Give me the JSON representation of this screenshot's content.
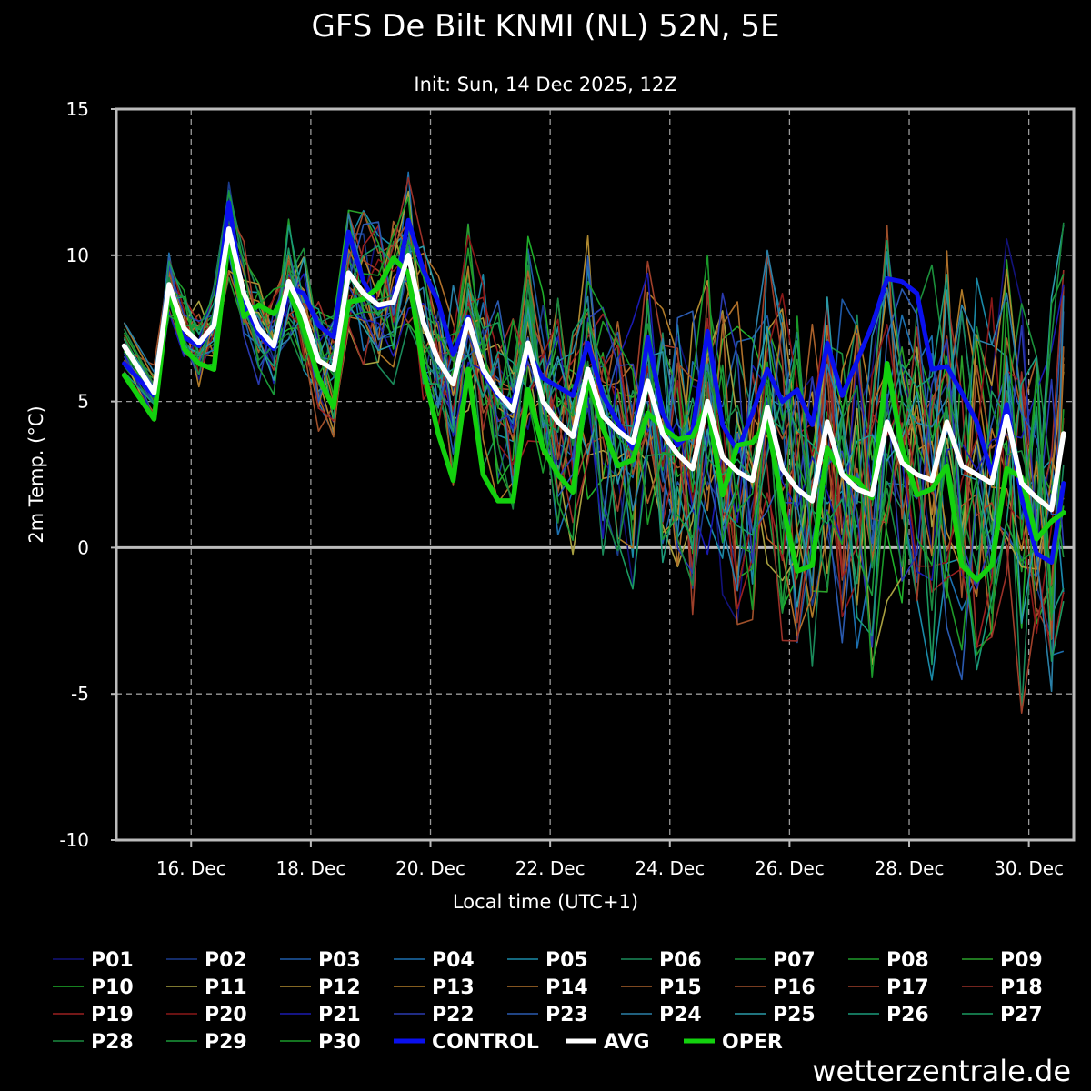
{
  "chart_data": {
    "type": "line",
    "title": "GFS De Bilt KNMI (NL) 52N, 5E",
    "subtitle": "Init: Sun, 14 Dec 2025, 12Z",
    "xlabel": "Local time (UTC+1)",
    "ylabel": "2m Temp. (°C)",
    "ylim": [
      -10,
      15
    ],
    "yticks": [
      15,
      10,
      5,
      0,
      -5,
      -10
    ],
    "xlim": [
      14.75,
      30.75
    ],
    "x_ticks": [
      {
        "value": 16,
        "label": "16. Dec"
      },
      {
        "value": 18,
        "label": "18. Dec"
      },
      {
        "value": 20,
        "label": "20. Dec"
      },
      {
        "value": 22,
        "label": "22. Dec"
      },
      {
        "value": 24,
        "label": "24. Dec"
      },
      {
        "value": 26,
        "label": "26. Dec"
      },
      {
        "value": 28,
        "label": "28. Dec"
      },
      {
        "value": 30,
        "label": "30. Dec"
      }
    ],
    "x_unit": "day of December 2025",
    "grid": true,
    "legend_position": "bottom",
    "main_series": [
      {
        "name": "CONTROL",
        "color": "#0a10ee",
        "x": [
          14.88,
          15.38,
          15.63,
          15.88,
          16.13,
          16.38,
          16.63,
          16.88,
          17.13,
          17.38,
          17.63,
          17.88,
          18.13,
          18.38,
          18.63,
          18.88,
          19.13,
          19.38,
          19.63,
          19.88,
          20.13,
          20.38,
          20.63,
          20.88,
          21.13,
          21.38,
          21.63,
          21.88,
          22.13,
          22.38,
          22.63,
          22.88,
          23.13,
          23.38,
          23.63,
          23.88,
          24.13,
          24.38,
          24.63,
          24.88,
          25.13,
          25.38,
          25.63,
          25.88,
          26.13,
          26.38,
          26.63,
          26.88,
          27.13,
          27.38,
          27.63,
          27.88,
          28.13,
          28.38,
          28.63,
          28.88,
          29.13,
          29.38,
          29.63,
          29.88,
          30.13,
          30.38,
          30.58
        ],
        "values": [
          6.3,
          5.2,
          8.9,
          7.2,
          6.9,
          7.6,
          11.8,
          8.4,
          7.3,
          6.8,
          8.9,
          8.7,
          7.6,
          7.2,
          10.8,
          9.1,
          8.2,
          8.4,
          11.2,
          9.5,
          8.4,
          6.6,
          7.9,
          6.0,
          5.2,
          5.0,
          6.7,
          5.8,
          5.5,
          5.2,
          7.0,
          5.2,
          4.3,
          3.4,
          7.2,
          4.6,
          3.5,
          4.0,
          7.4,
          4.2,
          3.3,
          4.6,
          6.1,
          5.0,
          5.4,
          4.2,
          7.0,
          5.2,
          6.4,
          7.6,
          9.2,
          9.1,
          8.7,
          6.1,
          6.2,
          5.3,
          4.3,
          2.5,
          4.9,
          1.7,
          -0.2,
          -0.5,
          2.2
        ]
      },
      {
        "name": "AVG",
        "color": "#ffffff",
        "x": [
          14.88,
          15.38,
          15.63,
          15.88,
          16.13,
          16.38,
          16.63,
          16.88,
          17.13,
          17.38,
          17.63,
          17.88,
          18.13,
          18.38,
          18.63,
          18.88,
          19.13,
          19.38,
          19.63,
          19.88,
          20.13,
          20.38,
          20.63,
          20.88,
          21.13,
          21.38,
          21.63,
          21.88,
          22.13,
          22.38,
          22.63,
          22.88,
          23.13,
          23.38,
          23.63,
          23.88,
          24.13,
          24.38,
          24.63,
          24.88,
          25.13,
          25.38,
          25.63,
          25.88,
          26.13,
          26.38,
          26.63,
          26.88,
          27.13,
          27.38,
          27.63,
          27.88,
          28.13,
          28.38,
          28.63,
          28.88,
          29.13,
          29.38,
          29.63,
          29.88,
          30.13,
          30.38,
          30.58
        ],
        "values": [
          6.9,
          5.3,
          9.0,
          7.5,
          7.0,
          7.6,
          10.9,
          8.7,
          7.5,
          6.9,
          9.1,
          8.0,
          6.4,
          6.1,
          9.4,
          8.7,
          8.3,
          8.4,
          10.0,
          7.7,
          6.4,
          5.6,
          7.8,
          6.1,
          5.3,
          4.7,
          7.0,
          5.0,
          4.3,
          3.8,
          6.1,
          4.5,
          4.0,
          3.6,
          5.7,
          3.9,
          3.2,
          2.7,
          5.0,
          3.1,
          2.6,
          2.3,
          4.8,
          2.7,
          2.0,
          1.6,
          4.3,
          2.5,
          2.0,
          1.8,
          4.3,
          2.9,
          2.5,
          2.3,
          4.3,
          2.8,
          2.5,
          2.2,
          4.5,
          2.2,
          1.7,
          1.3,
          3.9
        ]
      },
      {
        "name": "OPER",
        "color": "#13d10e",
        "x": [
          14.88,
          15.38,
          15.63,
          15.88,
          16.13,
          16.38,
          16.63,
          16.88,
          17.13,
          17.38,
          17.63,
          17.88,
          18.13,
          18.38,
          18.63,
          18.88,
          19.13,
          19.38,
          19.63,
          19.88,
          20.13,
          20.38,
          20.63,
          20.88,
          21.13,
          21.38,
          21.63,
          21.88,
          22.13,
          22.38,
          22.63,
          22.88,
          23.13,
          23.38,
          23.63,
          23.88,
          24.13,
          24.38,
          24.63,
          24.88,
          25.13,
          25.38,
          25.63,
          25.88,
          26.13,
          26.38,
          26.63,
          26.88,
          27.13,
          27.38,
          27.63,
          27.88,
          28.13,
          28.38,
          28.63,
          28.88,
          29.13,
          29.38,
          29.63,
          29.88,
          30.13,
          30.38,
          30.58
        ],
        "values": [
          5.9,
          4.4,
          8.8,
          6.8,
          6.3,
          6.1,
          10.6,
          7.9,
          8.3,
          8.0,
          8.8,
          7.5,
          5.8,
          4.8,
          8.4,
          8.5,
          8.9,
          9.9,
          9.4,
          6.1,
          3.9,
          2.3,
          6.1,
          2.5,
          1.6,
          1.6,
          5.4,
          3.4,
          2.5,
          1.9,
          5.8,
          4.1,
          2.8,
          3.0,
          4.6,
          4.1,
          3.7,
          3.8,
          4.9,
          1.8,
          3.5,
          3.6,
          4.3,
          1.5,
          -0.8,
          -0.6,
          3.4,
          2.5,
          2.3,
          1.7,
          6.3,
          3.4,
          1.8,
          2.0,
          2.8,
          -0.6,
          -1.1,
          -0.6,
          2.7,
          2.4,
          0.3,
          0.9,
          1.2
        ]
      }
    ],
    "ensemble_members": [
      {
        "name": "P01",
        "color": "#12127a"
      },
      {
        "name": "P02",
        "color": "#1a3a8c"
      },
      {
        "name": "P03",
        "color": "#1f5aa8"
      },
      {
        "name": "P04",
        "color": "#1c70b0"
      },
      {
        "name": "P05",
        "color": "#1a8aa8"
      },
      {
        "name": "P06",
        "color": "#1a8a5a"
      },
      {
        "name": "P07",
        "color": "#1b8f3a"
      },
      {
        "name": "P08",
        "color": "#1f9a2a"
      },
      {
        "name": "P09",
        "color": "#2aa02a"
      },
      {
        "name": "P10",
        "color": "#1fae2a"
      },
      {
        "name": "P11",
        "color": "#a8a040"
      },
      {
        "name": "P12",
        "color": "#b08a30"
      },
      {
        "name": "P13",
        "color": "#b07a28"
      },
      {
        "name": "P14",
        "color": "#b0702a"
      },
      {
        "name": "P15",
        "color": "#a8602a"
      },
      {
        "name": "P16",
        "color": "#a0502a"
      },
      {
        "name": "P17",
        "color": "#a0402a"
      },
      {
        "name": "P18",
        "color": "#9a3028"
      },
      {
        "name": "P19",
        "color": "#9a2020"
      },
      {
        "name": "P20",
        "color": "#8a1818"
      },
      {
        "name": "P21",
        "color": "#1a1ab0"
      },
      {
        "name": "P22",
        "color": "#2a3ab0"
      },
      {
        "name": "P23",
        "color": "#2a5ab0"
      },
      {
        "name": "P24",
        "color": "#2a80a8"
      },
      {
        "name": "P25",
        "color": "#2a9aa8"
      },
      {
        "name": "P26",
        "color": "#1a9a7a"
      },
      {
        "name": "P27",
        "color": "#1a9a60"
      },
      {
        "name": "P28",
        "color": "#1a8a40"
      },
      {
        "name": "P29",
        "color": "#1a9a3a"
      },
      {
        "name": "P30",
        "color": "#1a9a2a"
      }
    ]
  },
  "legend": {
    "rows": [
      [
        "P01",
        "P02",
        "P03",
        "P04",
        "P05",
        "P06",
        "P07",
        "P08",
        "P09"
      ],
      [
        "P10",
        "P11",
        "P12",
        "P13",
        "P14",
        "P15",
        "P16",
        "P17",
        "P18"
      ],
      [
        "P19",
        "P20",
        "P21",
        "P22",
        "P23",
        "P24",
        "P25",
        "P26",
        "P27"
      ],
      [
        "P28",
        "P29",
        "P30",
        "CONTROL",
        "AVG",
        "OPER"
      ]
    ]
  },
  "credit": "wetterzentrale.de",
  "colors": {
    "background": "#000000",
    "frame": "#bbbbbb",
    "grid": "#9a9a9a",
    "zero_line": "#bbbbbb"
  }
}
